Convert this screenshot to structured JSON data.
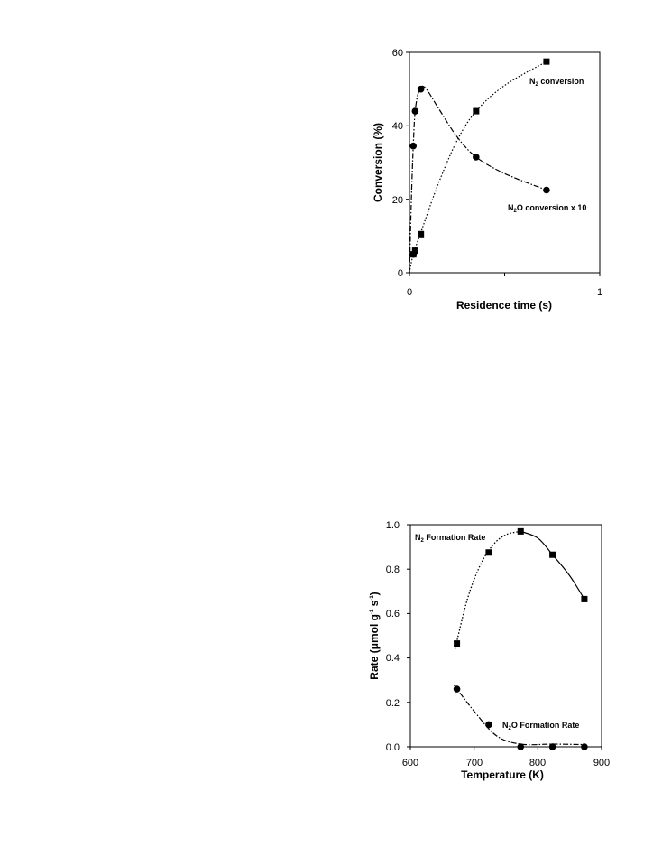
{
  "chart_data": [
    {
      "type": "scatter",
      "xlabel": "Residence time (s)",
      "ylabel": "Conversion (%)",
      "xlim": [
        0,
        1
      ],
      "ylim": [
        0,
        60
      ],
      "x_ticks": [
        "0",
        "1"
      ],
      "y_ticks": [
        "0",
        "20",
        "40",
        "60"
      ],
      "annotations": {
        "n2": {
          "pre": "N",
          "sub": "2",
          "post": " conversion"
        },
        "n2o": {
          "pre": "N",
          "sub": "2",
          "post": "O conversion x 10"
        }
      },
      "series": [
        {
          "marker": "square",
          "line": "dotted",
          "x": [
            0.02,
            0.03,
            0.06,
            0.35,
            0.72
          ],
          "y": [
            5,
            6,
            10.5,
            44,
            57.5
          ]
        },
        {
          "marker": "circle",
          "line": "dash-dot",
          "x": [
            0.02,
            0.02,
            0.03,
            0.06,
            0.35,
            0.72
          ],
          "y": [
            5,
            34.5,
            44,
            50,
            31.5,
            22.5
          ]
        }
      ]
    },
    {
      "type": "scatter",
      "xlabel": "Temperature (K)",
      "ylabel": "Rate (μmol g-1 s-1)",
      "xlim": [
        600,
        900
      ],
      "ylim": [
        0,
        1
      ],
      "x_ticks": [
        "600",
        "700",
        "800",
        "900"
      ],
      "y_ticks": [
        "0.0",
        "0.2",
        "0.4",
        "0.6",
        "0.8",
        "1.0"
      ],
      "annotations": {
        "n2": {
          "pre": "N",
          "sub": "2",
          "post": " Formation Rate"
        },
        "n2o": {
          "pre": "N",
          "sub": "2",
          "post": "O Formation Rate"
        }
      },
      "ylabel_parts": {
        "a": "Rate (μmol g",
        "b": "-1",
        "c": " s",
        "d": "-1",
        "e": ")"
      },
      "series": [
        {
          "marker": "square",
          "line": "dotted-solid",
          "x": [
            673,
            723,
            773,
            823,
            873
          ],
          "y": [
            0.465,
            0.875,
            0.97,
            0.865,
            0.665
          ]
        },
        {
          "marker": "circle",
          "line": "dash-dot",
          "x": [
            673,
            723,
            773,
            823,
            873
          ],
          "y": [
            0.26,
            0.1,
            0.0,
            0.0,
            0.0
          ]
        }
      ]
    }
  ]
}
